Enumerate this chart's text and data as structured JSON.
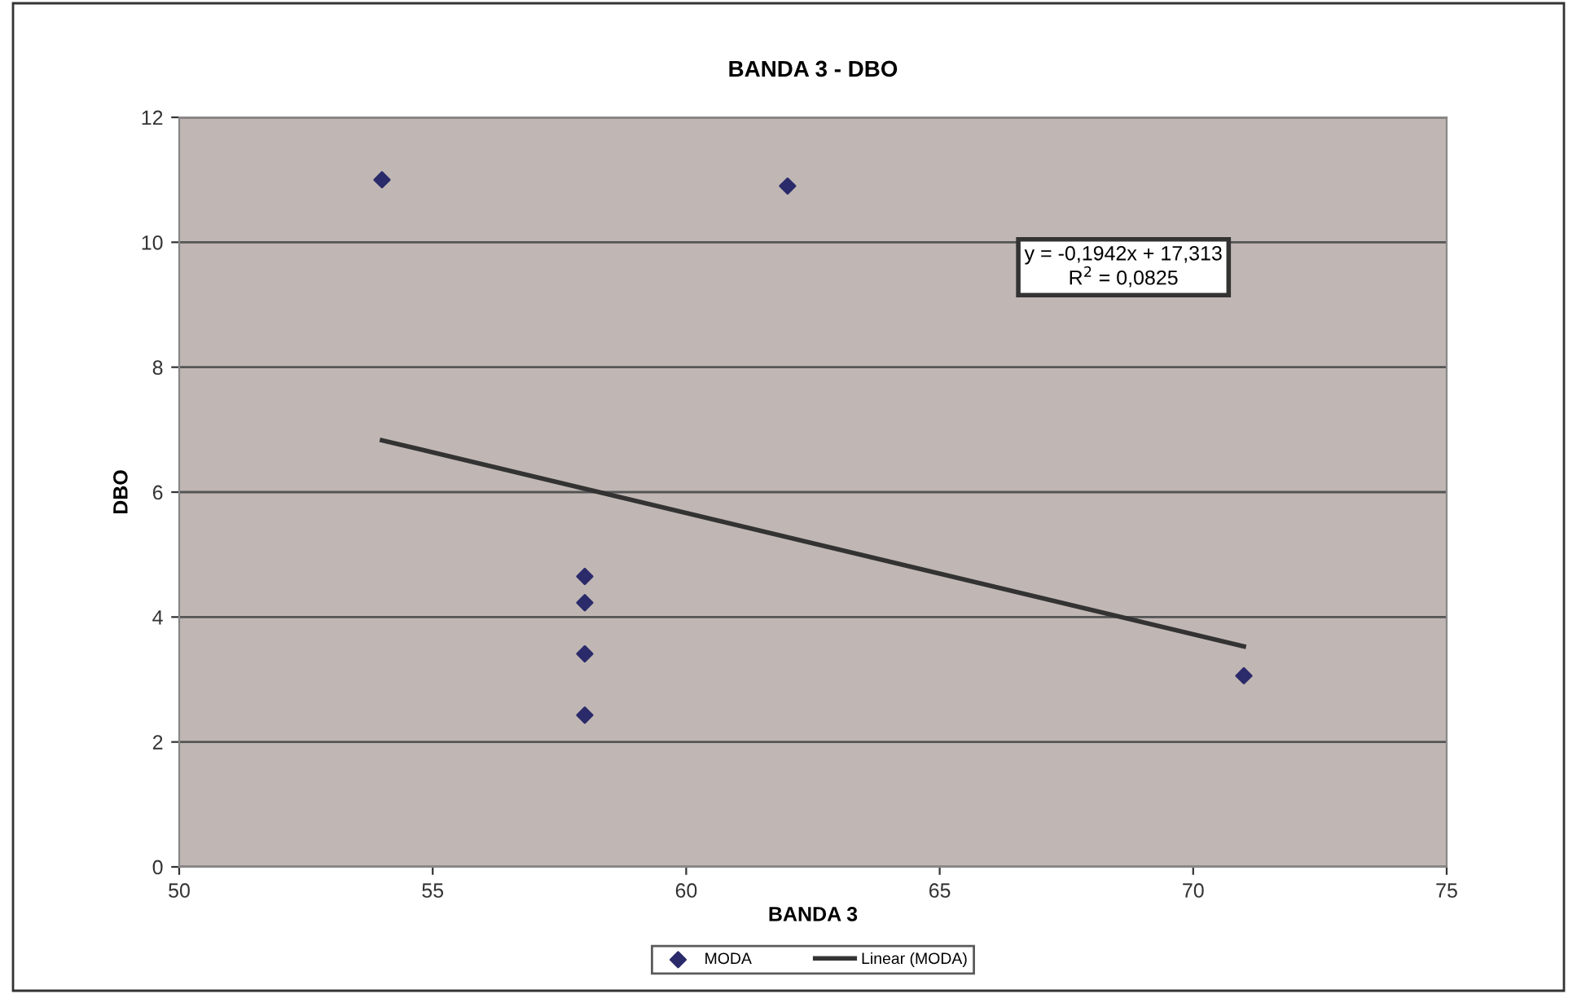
{
  "chart_data": {
    "type": "scatter",
    "title": "BANDA 3 - DBO",
    "xlabel": "BANDA 3",
    "ylabel": "DBO",
    "xlim": [
      50,
      75
    ],
    "xticks": [
      50,
      55,
      60,
      65,
      70,
      75
    ],
    "ylim": [
      0,
      12
    ],
    "yticks": [
      0,
      2,
      4,
      6,
      8,
      10,
      12
    ],
    "grid": "y",
    "legend": "bottom",
    "annotations": [
      "y = -0,1942x + 17,313\nR$^{2}$ = 0,0825"
    ],
    "series": [
      {
        "name": "MODA",
        "marker": "diamond",
        "color": "#2b2b6b",
        "x": [
          54,
          62,
          58,
          58,
          58,
          58,
          71
        ],
        "values": [
          11.0,
          10.9,
          4.65,
          4.23,
          3.41,
          2.43,
          3.06
        ]
      },
      {
        "name": "Linear (MODA)",
        "type": "line",
        "marker": "none",
        "color": "#333333",
        "x": [
          54,
          71
        ],
        "values": [
          6.83,
          3.53
        ]
      }
    ]
  }
}
